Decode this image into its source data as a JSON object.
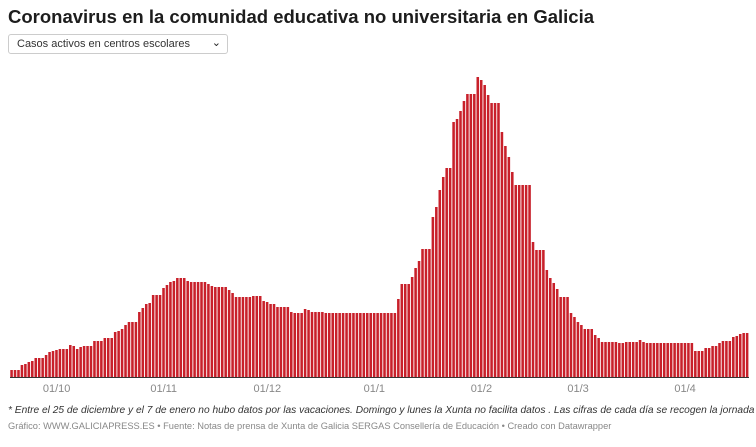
{
  "header": {
    "title": "Coronavirus en la comunidad educativa no universitaria en Galicia",
    "dropdown": {
      "selected": "Casos activos en centros escolares",
      "icon": "chevron-down-icon"
    }
  },
  "chart_data": {
    "type": "bar",
    "title": "Coronavirus en la comunidad educativa no universitaria en Galicia",
    "xlabel": "",
    "ylabel": "",
    "y_axis_shown": false,
    "grid": false,
    "bar_color": "#c8202a",
    "x_tick_labels": [
      "01/10",
      "01/11",
      "01/12",
      "01/1",
      "01/2",
      "01/3",
      "01/4"
    ],
    "series_by_month": [
      {
        "month": "09",
        "values": [
          7,
          7,
          7,
          12,
          13,
          15,
          16,
          19,
          19,
          19,
          22,
          25,
          26
        ]
      },
      {
        "month": "10",
        "values": [
          27,
          28,
          28,
          28,
          32,
          31,
          28,
          30,
          31,
          31,
          31,
          36,
          36,
          36,
          39,
          39,
          39,
          45,
          46,
          48,
          52,
          55,
          55,
          55,
          65,
          69,
          73,
          74,
          82,
          82,
          82
        ]
      },
      {
        "month": "11",
        "values": [
          89,
          92,
          95,
          96,
          99,
          99,
          99,
          96,
          95,
          95,
          95,
          95,
          95,
          93,
          91,
          90,
          90,
          90,
          90,
          87,
          84,
          80,
          80,
          80,
          80,
          80,
          81,
          81,
          81,
          76
        ]
      },
      {
        "month": "12",
        "values": [
          75,
          73,
          73,
          70,
          70,
          70,
          70,
          65,
          64,
          64,
          64,
          68,
          67,
          65,
          65,
          65,
          65,
          64,
          64,
          64,
          64,
          64,
          64,
          64,
          64,
          64,
          64,
          64,
          64,
          64,
          64
        ]
      },
      {
        "month": "01",
        "values": [
          64,
          64,
          64,
          64,
          64,
          64,
          64,
          78,
          93,
          93,
          93,
          100,
          109,
          116,
          128,
          128,
          128,
          160,
          170,
          187,
          200,
          209,
          209,
          255,
          258,
          266,
          276,
          283,
          283,
          283,
          300
        ]
      },
      {
        "month": "02",
        "values": [
          297,
          292,
          282,
          274,
          274,
          274,
          245,
          231,
          220,
          205,
          192,
          192,
          192,
          192,
          192,
          135,
          127,
          127,
          127,
          107,
          99,
          94,
          88,
          80,
          80,
          80,
          64,
          60
        ]
      },
      {
        "month": "03",
        "values": [
          55,
          52,
          48,
          48,
          48,
          42,
          39,
          35,
          35,
          35,
          35,
          35,
          34,
          34,
          35,
          35,
          35,
          35,
          37,
          35,
          34,
          34,
          34,
          34,
          34,
          34,
          34,
          34,
          34,
          34,
          34
        ]
      },
      {
        "month": "04",
        "values": [
          34,
          34,
          34,
          26,
          26,
          26,
          29,
          29,
          31,
          31,
          34,
          36,
          36,
          36,
          40,
          41,
          43,
          44,
          44
        ]
      }
    ],
    "ylim": [
      0,
      300
    ]
  },
  "footer": {
    "note": "* Entre el 25 de diciembre y el 7 de enero no hubo datos por las vacaciones. Domingo y lunes la Xunta no facilita datos . Las cifras de cada día se recogen la jornada anterior",
    "credits": "Gráfico: WWW.GALICIAPRESS.ES • Fuente: Notas de prensa de Xunta de Galicia SERGAS Consellería de Educación • Creado con Datawrapper"
  }
}
